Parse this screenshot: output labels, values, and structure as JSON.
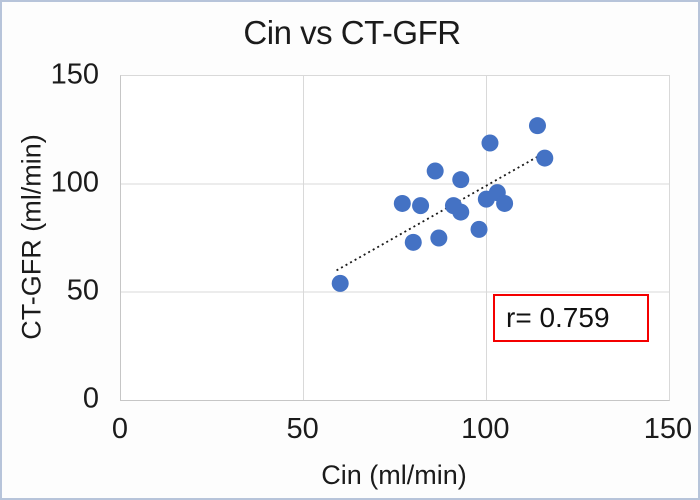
{
  "window": {
    "border_color": "#b7c4da",
    "background": "#ffffff"
  },
  "chart_data": {
    "type": "scatter",
    "title": "Cin vs CT-GFR",
    "xlabel": "Cin (ml/min)",
    "ylabel": "CT-GFR (ml/min)",
    "xlim": [
      0,
      150
    ],
    "ylim": [
      0,
      150
    ],
    "x_ticks": [
      0,
      50,
      100,
      150
    ],
    "y_ticks": [
      0,
      50,
      100,
      150
    ],
    "grid": true,
    "gridline_color": "#d9d9d9",
    "point_color": "#4472C4",
    "point_radius_px": 8.5,
    "points": [
      [
        60,
        54
      ],
      [
        77,
        91
      ],
      [
        80,
        73
      ],
      [
        82,
        90
      ],
      [
        86,
        106
      ],
      [
        87,
        75
      ],
      [
        91,
        90
      ],
      [
        93,
        87
      ],
      [
        93,
        102
      ],
      [
        98,
        79
      ],
      [
        100,
        93
      ],
      [
        101,
        119
      ],
      [
        103,
        96
      ],
      [
        105,
        91
      ],
      [
        114,
        127
      ],
      [
        116,
        112
      ]
    ],
    "trendline": {
      "style": "dotted",
      "color": "#1a1a1a",
      "x1": 59,
      "y1": 60,
      "x2": 116.5,
      "y2": 115
    },
    "annotation": {
      "text": "r= 0.759",
      "border_color": "#f40000"
    }
  }
}
